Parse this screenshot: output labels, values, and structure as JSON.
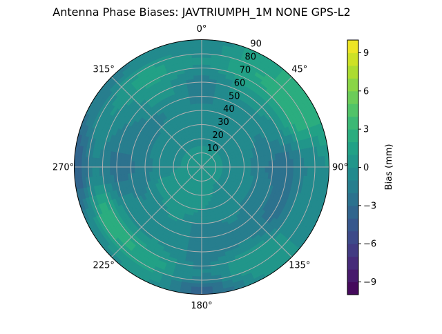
{
  "chart_data": {
    "type": "heatmap",
    "subtype": "polar-filled-contour",
    "title": "Antenna Phase Biases: JAVTRIUMPH_1M   NONE GPS-L2",
    "angular_ticks": [
      "0°",
      "45°",
      "90°",
      "135°",
      "180°",
      "225°",
      "270°",
      "315°"
    ],
    "angular_tick_values": [
      0,
      45,
      90,
      135,
      180,
      225,
      270,
      315
    ],
    "radial_ticks": [
      "10",
      "20",
      "30",
      "40",
      "50",
      "60",
      "70",
      "80",
      "90"
    ],
    "radial_tick_values": [
      10,
      20,
      30,
      40,
      50,
      60,
      70,
      80,
      90
    ],
    "rlim": [
      0,
      90
    ],
    "theta_zero": "north",
    "theta_direction": "clockwise",
    "grid": true,
    "azimuth_deg": [
      0,
      30,
      60,
      90,
      120,
      150,
      180,
      210,
      240,
      270,
      300,
      330
    ],
    "zenith_deg": [
      0,
      15,
      30,
      45,
      60,
      75,
      90
    ],
    "values_mm": [
      [
        0,
        0,
        -0.5,
        -1,
        -1.5,
        0,
        -1
      ],
      [
        0,
        0,
        -0.5,
        -1,
        0.5,
        2,
        1.5
      ],
      [
        0,
        0,
        -0.5,
        -1,
        0,
        3,
        3
      ],
      [
        0,
        0,
        -0.5,
        -2,
        -2.5,
        -1,
        0
      ],
      [
        0,
        0,
        -0.5,
        -1.5,
        -2.5,
        -0.5,
        0
      ],
      [
        0,
        0,
        -0.5,
        -1,
        -1,
        1,
        0
      ],
      [
        0,
        0.5,
        0,
        -1.5,
        -1.5,
        -1,
        -3.5
      ],
      [
        0,
        0.5,
        0.5,
        0,
        0,
        1.5,
        0.5
      ],
      [
        0,
        0.5,
        0.5,
        -1,
        -0.5,
        3,
        -1
      ],
      [
        0,
        0,
        -0.5,
        -2,
        -2.5,
        -1,
        -4
      ],
      [
        0,
        0,
        -0.5,
        -1.5,
        -1,
        0,
        -2
      ],
      [
        0,
        0,
        0,
        -1,
        0.5,
        1.5,
        -1
      ]
    ],
    "colorbar": {
      "label": "Bias (mm)",
      "range": [
        -10,
        10
      ],
      "level_step": 1,
      "ticks": [
        "−9",
        "−6",
        "−3",
        "0",
        "3",
        "6",
        "9"
      ],
      "tick_values": [
        -9,
        -6,
        -3,
        0,
        3,
        6,
        9
      ],
      "colormap": "viridis"
    }
  }
}
